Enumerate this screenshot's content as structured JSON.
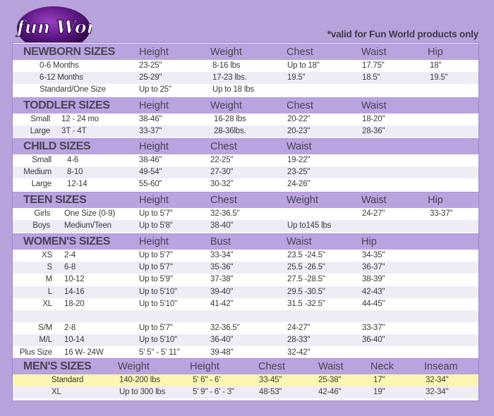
{
  "logo": {
    "text": "fun World"
  },
  "note": "*valid for Fun World products only",
  "colors": {
    "background": "#b7a2db",
    "header_row": "#b9a4e0",
    "alt_row": "#efecf6",
    "highlight_row": "#fbf7b3"
  },
  "sections": [
    {
      "title": "NEWBORN SIZES",
      "headers": [
        "Height",
        "Weight",
        "Chest",
        "Waist",
        "Hip"
      ],
      "rows": [
        {
          "label": "0-6 Months",
          "size": "",
          "values": [
            "23-25\"",
            "8-16 lbs",
            "Up to 18\"",
            "17.75\"",
            "18\""
          ]
        },
        {
          "label": "6-12 Months",
          "size": "",
          "values": [
            "25-29\"",
            "17-23 lbs.",
            "19.5\"",
            "18.5\"",
            "19.5\""
          ]
        },
        {
          "label": "Standard/One Size",
          "size": "",
          "values": [
            "Up to 25\"",
            "Up to 18 lbs",
            "",
            "",
            ""
          ]
        }
      ]
    },
    {
      "title": "TODDLER SIZES",
      "headers": [
        "Height",
        "Weight",
        "Chest",
        "Waist"
      ],
      "rows": [
        {
          "label": "Small",
          "size": "12 - 24 mo",
          "values": [
            "38-46\"",
            "16-28 lbs",
            "20-22\"",
            "18-20\""
          ]
        },
        {
          "label": "Large",
          "size": "3T - 4T",
          "values": [
            "33-37\"",
            "28-36lbs.",
            "20-23\"",
            "28-36\""
          ]
        }
      ]
    },
    {
      "title": "CHILD SIZES",
      "headers": [
        "Height",
        "Chest",
        "Waist"
      ],
      "rows": [
        {
          "label": "Small",
          "size": "4-6",
          "values": [
            "38-46\"",
            "22-25\"",
            "19-22\""
          ]
        },
        {
          "label": "Medium",
          "size": "8-10",
          "values": [
            "49-54\"",
            "27-30\"",
            "23-25\""
          ]
        },
        {
          "label": "Large",
          "size": "12-14",
          "values": [
            "55-60\"",
            "30-32\"",
            "24-26\""
          ]
        }
      ]
    },
    {
      "title": "TEEN SIZES",
      "headers": [
        "Height",
        "Chest",
        "Weight",
        "Waist",
        "Hip"
      ],
      "rows": [
        {
          "label": "Girls",
          "size": "One Size (0-9)",
          "values": [
            "Up to 5'7\"",
            "32-36.5\"",
            "",
            "24-27\"",
            "33-37\""
          ]
        },
        {
          "label": "Boys",
          "size": "Medium/Teen",
          "values": [
            "Up to 5'8\"",
            "38-40\"",
            "Up to145 lbs",
            "",
            ""
          ]
        }
      ]
    },
    {
      "title": "WOMEN'S SIZES",
      "headers": [
        "Height",
        "Bust",
        "Waist",
        "Hip"
      ],
      "rows": [
        {
          "label": "XS",
          "size": "2-4",
          "values": [
            "Up to 5'7\"",
            "33-34\"",
            "23.5 -24.5\"",
            "34-35\""
          ]
        },
        {
          "label": "S",
          "size": "6-8",
          "values": [
            "Up to 5'7\"",
            "35-36\"",
            "25.5 -26.5\"",
            "36-37\""
          ]
        },
        {
          "label": "M",
          "size": "10-12",
          "values": [
            "Up to 5'9\"",
            "37-38\"",
            "27.5 -28.5\"",
            "38-39\""
          ]
        },
        {
          "label": "L",
          "size": "14-16",
          "values": [
            "Up to 5'10\"",
            "39-40\"",
            "29.5 -30.5\"",
            "42-43\""
          ]
        },
        {
          "label": "XL",
          "size": "18-20",
          "values": [
            "Up to 5'10\"",
            "41-42\"",
            "31.5 -32.5\"",
            "44-45\""
          ]
        },
        {
          "label": "",
          "size": "",
          "values": [
            "",
            "",
            "",
            ""
          ]
        },
        {
          "label": "S/M",
          "size": "2-8",
          "values": [
            "Up to 5'7\"",
            "32-36.5\"",
            "24-27\"",
            "33-37\""
          ]
        },
        {
          "label": "M/L",
          "size": "10-14",
          "values": [
            "Up to 5'10\"",
            "36-40\"",
            "28-33\"",
            "36-40\""
          ]
        },
        {
          "label": "Plus Size",
          "size": "16 W- 24W",
          "values": [
            "5' 5\" - 5' 11\"",
            "39-48\"",
            "32-42\"",
            ""
          ]
        }
      ]
    },
    {
      "title": "MEN'S SIZES",
      "headers": [
        "Weight",
        "Height",
        "Chest",
        "Waist",
        "Neck",
        "Inseam"
      ],
      "rows": [
        {
          "label": "Standard",
          "size": "",
          "highlighted": true,
          "values": [
            "140-200 lbs",
            "5' 6\" - 6'",
            "33-45\"",
            "25-38\"",
            "17\"",
            "32-34\""
          ]
        },
        {
          "label": "XL",
          "size": "",
          "values": [
            "Up to 300 lbs",
            "5' 9\" - 6' - 3\"",
            "48-53\"",
            "42-46\"",
            "19\"",
            "32-34\""
          ]
        }
      ]
    }
  ]
}
